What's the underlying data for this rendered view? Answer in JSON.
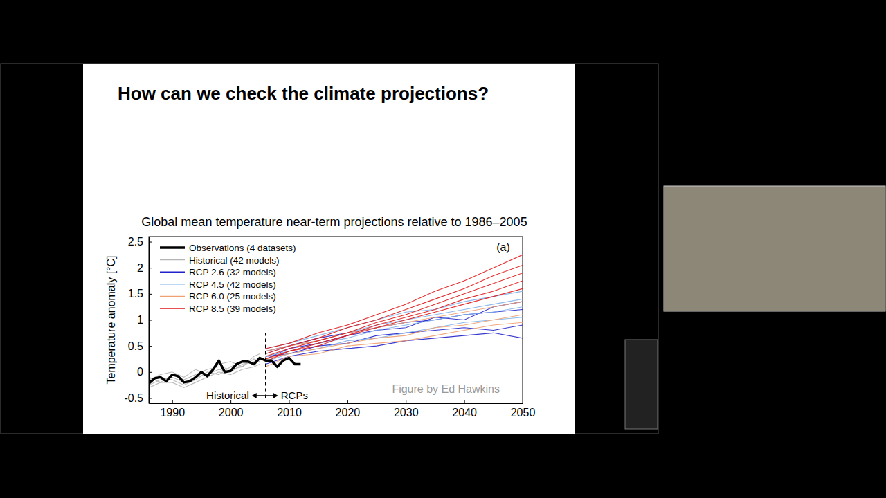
{
  "slide": {
    "title": "How can we check the climate projections?"
  },
  "chart_data": {
    "type": "line",
    "title": "Global mean temperature near-term projections relative to 1986–2005",
    "y_label": "Temperature anomaly [°C]",
    "xlim": [
      1986,
      2050
    ],
    "xticks": [
      1990,
      2000,
      2010,
      2020,
      2030,
      2040,
      2050
    ],
    "ylim": [
      -0.6,
      2.6
    ],
    "yticks": [
      -0.5,
      0,
      0.5,
      1,
      1.5,
      2,
      2.5
    ],
    "grid": false,
    "legend": "upper left",
    "panel_label": "(a)",
    "credit": "Figure by Ed Hawkins",
    "divider": {
      "x": 2006,
      "ylim": [
        -0.5,
        0.75
      ],
      "left_label": "Historical",
      "right_label": "RCPs"
    },
    "series": [
      {
        "name": "Historical (42 models)",
        "color": "#b4b4b4",
        "x": [
          1986,
          1988,
          1990,
          1992,
          1994,
          1996,
          1998,
          2000,
          2002,
          2004,
          2005
        ],
        "runs": [
          [
            -0.25,
            -0.15,
            -0.1,
            -0.2,
            -0.1,
            -0.05,
            0.05,
            0.0,
            0.15,
            0.2,
            0.25
          ],
          [
            -0.1,
            -0.2,
            -0.05,
            -0.15,
            -0.05,
            0.05,
            0.1,
            0.05,
            0.1,
            0.25,
            0.2
          ],
          [
            -0.2,
            -0.1,
            -0.15,
            -0.25,
            -0.15,
            0.0,
            -0.05,
            0.1,
            0.2,
            0.15,
            0.3
          ],
          [
            -0.15,
            -0.05,
            0.0,
            -0.1,
            0.05,
            -0.05,
            0.15,
            0.2,
            0.1,
            0.3,
            0.35
          ],
          [
            -0.3,
            -0.2,
            -0.2,
            -0.3,
            -0.2,
            -0.1,
            0.0,
            -0.05,
            0.05,
            0.1,
            0.15
          ]
        ]
      },
      {
        "name": "RCP 2.6 (32 models)",
        "color": "#2222cc",
        "x": [
          2006,
          2010,
          2015,
          2020,
          2025,
          2030,
          2035,
          2040,
          2045,
          2050
        ],
        "runs": [
          [
            0.3,
            0.35,
            0.5,
            0.55,
            0.7,
            0.75,
            0.8,
            0.85,
            0.8,
            0.9
          ],
          [
            0.15,
            0.3,
            0.4,
            0.45,
            0.5,
            0.6,
            0.65,
            0.7,
            0.75,
            0.65
          ],
          [
            0.4,
            0.5,
            0.65,
            0.75,
            0.85,
            0.95,
            1.0,
            1.1,
            1.15,
            1.2
          ],
          [
            0.25,
            0.45,
            0.55,
            0.7,
            0.8,
            0.85,
            1.05,
            1.0,
            1.25,
            1.35
          ]
        ]
      },
      {
        "name": "RCP 4.5 (42 models)",
        "color": "#7fb2ea",
        "x": [
          2006,
          2010,
          2015,
          2020,
          2025,
          2030,
          2035,
          2040,
          2045,
          2050
        ],
        "runs": [
          [
            0.3,
            0.4,
            0.55,
            0.65,
            0.8,
            0.9,
            1.0,
            1.1,
            1.15,
            1.25
          ],
          [
            0.2,
            0.35,
            0.45,
            0.6,
            0.65,
            0.75,
            0.85,
            0.95,
            1.0,
            1.05
          ],
          [
            0.45,
            0.55,
            0.7,
            0.85,
            1.0,
            1.15,
            1.2,
            1.35,
            1.45,
            1.55
          ],
          [
            0.35,
            0.5,
            0.6,
            0.75,
            0.9,
            1.0,
            1.1,
            1.2,
            1.3,
            1.4
          ]
        ]
      },
      {
        "name": "RCP 6.0 (25 models)",
        "color": "#f0a070",
        "x": [
          2006,
          2010,
          2015,
          2020,
          2025,
          2030,
          2035,
          2040,
          2045,
          2050
        ],
        "runs": [
          [
            0.25,
            0.35,
            0.45,
            0.55,
            0.65,
            0.7,
            0.85,
            0.9,
            1.0,
            1.1
          ],
          [
            0.1,
            0.3,
            0.35,
            0.5,
            0.55,
            0.6,
            0.7,
            0.8,
            0.9,
            0.95
          ],
          [
            0.4,
            0.5,
            0.6,
            0.75,
            0.85,
            0.95,
            1.05,
            1.15,
            1.25,
            1.35
          ]
        ]
      },
      {
        "name": "RCP 8.5 (39 models)",
        "color": "#e01818",
        "x": [
          2006,
          2010,
          2015,
          2020,
          2025,
          2030,
          2035,
          2040,
          2045,
          2050
        ],
        "runs": [
          [
            0.3,
            0.45,
            0.6,
            0.75,
            0.95,
            1.1,
            1.3,
            1.5,
            1.7,
            1.9
          ],
          [
            0.2,
            0.4,
            0.5,
            0.7,
            0.85,
            1.0,
            1.15,
            1.3,
            1.45,
            1.6
          ],
          [
            0.45,
            0.55,
            0.75,
            0.9,
            1.1,
            1.3,
            1.55,
            1.75,
            2.0,
            2.25
          ],
          [
            0.35,
            0.5,
            0.65,
            0.85,
            1.0,
            1.2,
            1.4,
            1.6,
            1.85,
            2.05
          ],
          [
            0.25,
            0.4,
            0.55,
            0.7,
            0.9,
            1.05,
            1.2,
            1.4,
            1.55,
            1.75
          ]
        ]
      },
      {
        "name": "Observations (4 datasets)",
        "color": "#000000",
        "x": [
          1986,
          1987,
          1988,
          1989,
          1990,
          1991,
          1992,
          1993,
          1994,
          1995,
          1996,
          1997,
          1998,
          1999,
          2000,
          2001,
          2002,
          2003,
          2004,
          2005,
          2006,
          2007,
          2008,
          2009,
          2010,
          2011,
          2012
        ],
        "values": [
          -0.22,
          -0.12,
          -0.1,
          -0.18,
          -0.05,
          -0.08,
          -0.2,
          -0.18,
          -0.1,
          0.0,
          -0.08,
          0.05,
          0.22,
          0.0,
          0.02,
          0.15,
          0.2,
          0.2,
          0.15,
          0.27,
          0.22,
          0.22,
          0.1,
          0.22,
          0.27,
          0.15,
          0.15
        ]
      }
    ],
    "legend_order": [
      5,
      0,
      1,
      2,
      3,
      4
    ]
  }
}
